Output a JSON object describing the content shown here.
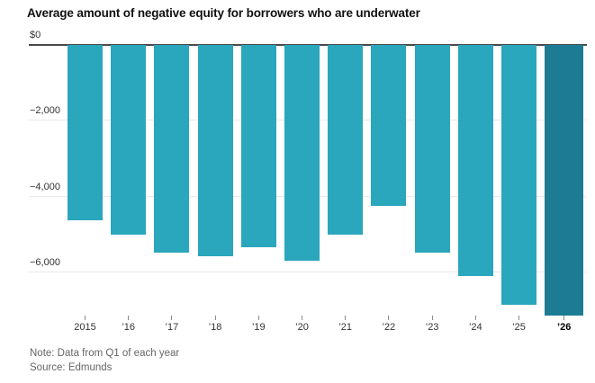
{
  "title": "Average amount of negative equity for borrowers who are underwater",
  "footer": {
    "note": "Note: Data from Q1 of each year",
    "source": "Source: Edmunds"
  },
  "colors": {
    "bar": "#2aa6bd",
    "bar_highlight": "#1d7b94",
    "zero_axis": "#4a4a4a",
    "gridline": "#e9e9e9",
    "tick": "#8a8a8a",
    "title_text": "#111111",
    "axis_text": "#333333",
    "note_text": "#666666"
  },
  "chart_data": {
    "type": "bar",
    "title": "Average amount of negative equity for borrowers who are underwater",
    "categories": [
      "2015",
      "’16",
      "’17",
      "’18",
      "’19",
      "’20",
      "’21",
      "’22",
      "’23",
      "’24",
      "’25",
      "’26"
    ],
    "values": [
      -4650,
      -5030,
      -5500,
      -5590,
      -5370,
      -5720,
      -5020,
      -4270,
      -5500,
      -6130,
      -6890,
      -7160
    ],
    "highlight_index": 11,
    "xlabel": "",
    "ylabel": "",
    "ylim": [
      -7400,
      0
    ],
    "yticks": [
      0,
      -2000,
      -4000,
      -6000
    ],
    "ytick_labels": [
      "$0",
      "−2,000",
      "−4,000",
      "−6,000"
    ],
    "grid": true,
    "legend": false,
    "orientation": "vertical-negative"
  }
}
